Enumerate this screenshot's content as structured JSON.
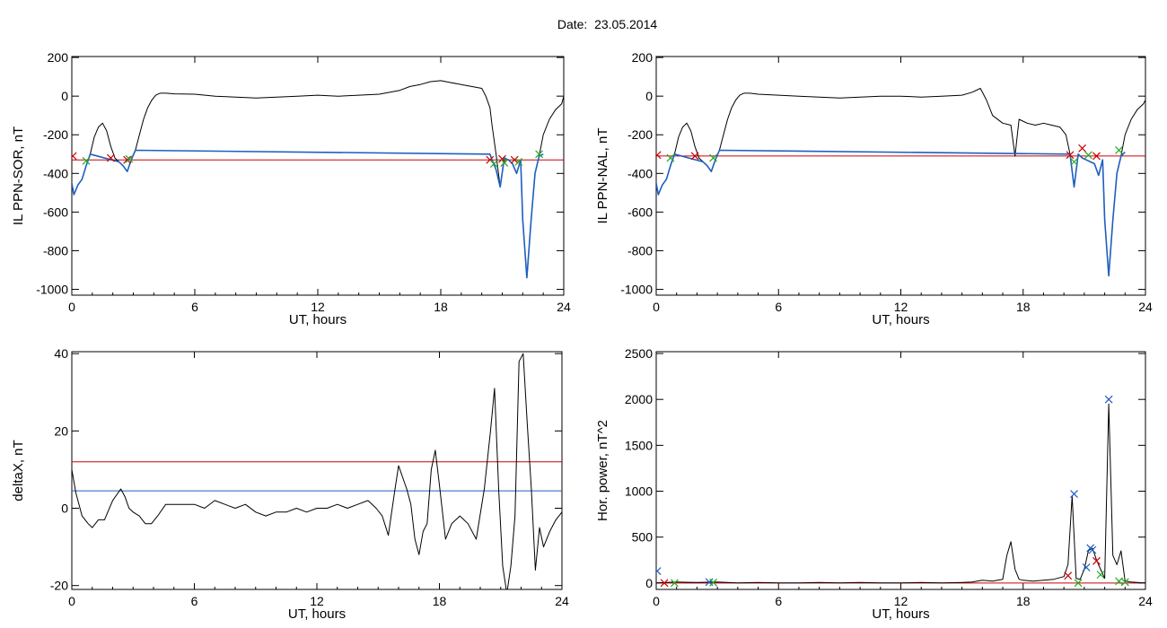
{
  "page_title": "Date:  23.05.2014",
  "colors": {
    "trace": "#000000",
    "threshold_red": "#cc0000",
    "threshold_blue": "#1f5fbf",
    "mark_green": "#22aa22",
    "mark_red": "#cc0000",
    "mark_blue": "#1f5fbf"
  },
  "chart_data": [
    {
      "type": "line",
      "xlabel": "UT, hours",
      "ylabel": "IL PPN-SOR, nT",
      "xlim": [
        0,
        24
      ],
      "ylim": [
        -1030,
        205
      ],
      "xticks": [
        0,
        6,
        12,
        18,
        24
      ],
      "yticks": [
        200,
        0,
        -200,
        -400,
        -600,
        -800,
        -1000
      ],
      "ytick_labels": [
        "200",
        "0",
        "-200",
        "-400",
        "-600",
        "-800",
        "-1000"
      ],
      "series": [
        {
          "style": "black",
          "x": [
            0,
            0.1,
            0.3,
            0.5,
            0.7,
            0.9,
            1.1,
            1.3,
            1.5,
            1.7,
            1.9,
            2.1,
            2.3,
            2.5,
            2.7,
            2.9,
            3.1,
            3.3,
            3.5,
            3.7,
            3.9,
            4.1,
            4.3,
            4.6,
            5.0,
            6,
            7,
            8,
            9,
            10,
            11,
            12,
            13,
            14,
            15,
            16,
            16.5,
            17,
            17.5,
            18,
            18.5,
            19,
            19.5,
            20,
            20.2,
            20.4,
            20.5,
            20.7,
            20.9,
            21.1,
            21.3,
            21.5,
            21.7,
            21.9,
            22.0,
            22.2,
            22.4,
            22.6,
            22.8,
            23.0,
            23.3,
            23.6,
            23.9,
            24
          ],
          "y": [
            -450,
            -510,
            -460,
            -430,
            -360,
            -300,
            -210,
            -160,
            -140,
            -180,
            -260,
            -320,
            -340,
            -360,
            -390,
            -330,
            -280,
            -200,
            -120,
            -60,
            -20,
            5,
            15,
            15,
            12,
            10,
            0,
            -5,
            -10,
            -5,
            0,
            5,
            0,
            5,
            10,
            30,
            50,
            60,
            75,
            80,
            70,
            60,
            50,
            40,
            0,
            -60,
            -150,
            -300,
            -470,
            -320,
            -330,
            -350,
            -400,
            -330,
            -640,
            -940,
            -650,
            -400,
            -310,
            -200,
            -120,
            -70,
            -40,
            0
          ]
        },
        {
          "style": "blue",
          "x": [
            0,
            0.1,
            0.3,
            0.5,
            0.7,
            0.9,
            2.3,
            2.5,
            2.7,
            2.9,
            3.1,
            20.4,
            20.5,
            20.7,
            20.9,
            21.1,
            21.3,
            21.5,
            21.7,
            21.9,
            22.0,
            22.2,
            22.4,
            22.6,
            22.8,
            23.0
          ],
          "y": [
            -450,
            -510,
            -460,
            -430,
            -360,
            -300,
            -340,
            -360,
            -390,
            -330,
            -280,
            -300,
            -330,
            -380,
            -470,
            -320,
            -330,
            -350,
            -400,
            -330,
            -640,
            -940,
            -650,
            -400,
            -310,
            -300
          ]
        }
      ],
      "hlines": [
        {
          "y": -330,
          "color": "red"
        }
      ],
      "markers": [
        {
          "x": 0.05,
          "y": -310,
          "color": "red"
        },
        {
          "x": 0.7,
          "y": -335,
          "color": "green"
        },
        {
          "x": 1.9,
          "y": -320,
          "color": "red"
        },
        {
          "x": 2.7,
          "y": -330,
          "color": "red"
        },
        {
          "x": 2.8,
          "y": -325,
          "color": "green"
        },
        {
          "x": 20.4,
          "y": -330,
          "color": "red"
        },
        {
          "x": 20.6,
          "y": -350,
          "color": "green"
        },
        {
          "x": 21.0,
          "y": -325,
          "color": "red"
        },
        {
          "x": 21.1,
          "y": -345,
          "color": "green"
        },
        {
          "x": 21.6,
          "y": -330,
          "color": "red"
        },
        {
          "x": 21.8,
          "y": -340,
          "color": "green"
        },
        {
          "x": 22.8,
          "y": -300,
          "color": "green"
        }
      ]
    },
    {
      "type": "line",
      "xlabel": "UT, hours",
      "ylabel": "IL PPN-NAL, nT",
      "xlim": [
        0,
        24
      ],
      "ylim": [
        -1030,
        205
      ],
      "xticks": [
        0,
        6,
        12,
        18,
        24
      ],
      "yticks": [
        200,
        0,
        -200,
        -400,
        -600,
        -800,
        -1000
      ],
      "ytick_labels": [
        "200",
        "0",
        "-200",
        "-400",
        "-600",
        "-800",
        "-1000"
      ],
      "series": [
        {
          "style": "black",
          "x": [
            0,
            0.1,
            0.3,
            0.5,
            0.7,
            0.9,
            1.1,
            1.3,
            1.5,
            1.7,
            1.9,
            2.1,
            2.3,
            2.5,
            2.7,
            2.9,
            3.1,
            3.3,
            3.5,
            3.7,
            3.9,
            4.1,
            4.3,
            4.6,
            5.0,
            6,
            7,
            8,
            9,
            10,
            11,
            12,
            13,
            14,
            15,
            15.5,
            15.9,
            16.2,
            16.5,
            17.0,
            17.4,
            17.6,
            17.8,
            18.2,
            18.6,
            19.0,
            19.4,
            19.8,
            20.1,
            20.3,
            20.5,
            20.7,
            20.9,
            21.1,
            21.3,
            21.5,
            21.7,
            21.9,
            22.0,
            22.2,
            22.4,
            22.6,
            22.8,
            23.0,
            23.3,
            23.6,
            23.9,
            24
          ],
          "y": [
            -450,
            -510,
            -460,
            -430,
            -360,
            -300,
            -210,
            -160,
            -140,
            -180,
            -260,
            -320,
            -340,
            -360,
            -390,
            -330,
            -280,
            -200,
            -120,
            -60,
            -20,
            5,
            15,
            15,
            10,
            5,
            0,
            -5,
            -10,
            -5,
            0,
            0,
            -5,
            0,
            5,
            20,
            40,
            -20,
            -100,
            -140,
            -150,
            -310,
            -120,
            -140,
            -150,
            -140,
            -150,
            -160,
            -200,
            -300,
            -470,
            -300,
            -320,
            -330,
            -340,
            -350,
            -410,
            -330,
            -640,
            -930,
            -640,
            -400,
            -310,
            -200,
            -120,
            -70,
            -40,
            -20
          ]
        },
        {
          "style": "blue",
          "x": [
            0,
            0.1,
            0.3,
            0.5,
            0.7,
            0.9,
            2.3,
            2.5,
            2.7,
            2.9,
            3.1,
            20.3,
            20.5,
            20.7,
            20.9,
            21.1,
            21.3,
            21.5,
            21.7,
            21.9,
            22.0,
            22.2,
            22.4,
            22.6,
            22.8,
            23.0
          ],
          "y": [
            -450,
            -510,
            -460,
            -430,
            -360,
            -300,
            -340,
            -360,
            -390,
            -330,
            -280,
            -300,
            -470,
            -300,
            -320,
            -330,
            -340,
            -350,
            -410,
            -330,
            -640,
            -930,
            -640,
            -400,
            -310,
            -290
          ]
        }
      ],
      "hlines": [
        {
          "y": -310,
          "color": "red"
        }
      ],
      "markers": [
        {
          "x": 0.05,
          "y": -305,
          "color": "red"
        },
        {
          "x": 0.7,
          "y": -320,
          "color": "green"
        },
        {
          "x": 1.9,
          "y": -310,
          "color": "red"
        },
        {
          "x": 2.8,
          "y": -320,
          "color": "green"
        },
        {
          "x": 20.3,
          "y": -305,
          "color": "red"
        },
        {
          "x": 20.5,
          "y": -340,
          "color": "green"
        },
        {
          "x": 20.9,
          "y": -270,
          "color": "red"
        },
        {
          "x": 21.2,
          "y": -305,
          "color": "green"
        },
        {
          "x": 21.6,
          "y": -310,
          "color": "red"
        },
        {
          "x": 22.7,
          "y": -280,
          "color": "green"
        }
      ]
    },
    {
      "type": "line",
      "xlabel": "UT, hours",
      "ylabel": "deltaX, nT",
      "xlim": [
        0,
        24
      ],
      "ylim": [
        -21,
        40.5
      ],
      "xticks": [
        0,
        6,
        12,
        18,
        24
      ],
      "yticks": [
        40,
        20,
        0,
        -20
      ],
      "ytick_labels": [
        "40",
        "20",
        "0",
        "-20"
      ],
      "series": [
        {
          "style": "black",
          "x": [
            0,
            0.2,
            0.5,
            0.8,
            1.0,
            1.3,
            1.6,
            2.0,
            2.4,
            2.6,
            2.8,
            3.0,
            3.3,
            3.6,
            3.9,
            4.2,
            4.6,
            5.0,
            5.5,
            6.0,
            6.5,
            7.0,
            7.5,
            8.0,
            8.5,
            9.0,
            9.5,
            10.0,
            10.5,
            11.0,
            11.5,
            12.0,
            12.5,
            13.0,
            13.5,
            14.0,
            14.5,
            14.9,
            15.2,
            15.5,
            15.8,
            16.0,
            16.2,
            16.4,
            16.6,
            16.8,
            17.0,
            17.2,
            17.4,
            17.6,
            17.8,
            18.0,
            18.3,
            18.6,
            19.0,
            19.4,
            19.8,
            20.2,
            20.5,
            20.7,
            20.9,
            21.1,
            21.3,
            21.5,
            21.7,
            21.9,
            22.1,
            22.3,
            22.5,
            22.7,
            22.9,
            23.1,
            23.4,
            23.7,
            24
          ],
          "y": [
            10,
            4,
            -2,
            -4,
            -5,
            -3,
            -3,
            2,
            5,
            3,
            0,
            -1,
            -2,
            -4,
            -4,
            -2,
            1,
            1,
            1,
            1,
            0,
            2,
            1,
            0,
            1,
            -1,
            -2,
            -1,
            -1,
            0,
            -1,
            0,
            0,
            1,
            0,
            1,
            2,
            0,
            -2,
            -7,
            4,
            11,
            8,
            5,
            1,
            -8,
            -12,
            -6,
            -4,
            10,
            15,
            6,
            -8,
            -4,
            -2,
            -4,
            -8,
            5,
            20,
            31,
            5,
            -15,
            -22,
            -15,
            -2,
            38,
            40,
            22,
            5,
            -16,
            -5,
            -10,
            -6,
            -3,
            -1
          ]
        }
      ],
      "hlines": [
        {
          "y": 12,
          "color": "red"
        },
        {
          "y": 4.5,
          "color": "blue"
        }
      ],
      "markers": []
    },
    {
      "type": "line",
      "xlabel": "UT, hours",
      "ylabel": "Hor. power, nT^2",
      "xlim": [
        0,
        24
      ],
      "ylim": [
        -70,
        2520
      ],
      "xticks": [
        0,
        6,
        12,
        18,
        24
      ],
      "yticks": [
        2500,
        2000,
        1500,
        1000,
        500,
        0
      ],
      "ytick_labels": [
        "2500",
        "2000",
        "1500",
        "1000",
        "500",
        "0"
      ],
      "series": [
        {
          "style": "black",
          "x": [
            0,
            0.5,
            1,
            2,
            3,
            4,
            5,
            6,
            7,
            8,
            9,
            10,
            11,
            12,
            13,
            14,
            15,
            15.5,
            16,
            16.5,
            17,
            17.2,
            17.4,
            17.6,
            17.8,
            18.0,
            18.5,
            19.0,
            19.5,
            20.0,
            20.2,
            20.4,
            20.6,
            20.8,
            21.0,
            21.2,
            21.4,
            21.6,
            21.8,
            22.0,
            22.2,
            22.4,
            22.6,
            22.8,
            23.0,
            23.3,
            23.6,
            24
          ],
          "y": [
            0,
            5,
            10,
            5,
            10,
            0,
            5,
            0,
            0,
            5,
            0,
            5,
            0,
            0,
            5,
            0,
            5,
            10,
            30,
            20,
            40,
            300,
            450,
            150,
            40,
            30,
            20,
            30,
            40,
            70,
            200,
            950,
            50,
            40,
            150,
            350,
            380,
            250,
            150,
            50,
            1950,
            300,
            200,
            350,
            20,
            10,
            5,
            0
          ]
        }
      ],
      "hlines": [
        {
          "y": 0,
          "color": "red"
        }
      ],
      "markers": [
        {
          "x": 0.05,
          "y": 130,
          "color": "blue"
        },
        {
          "x": 0.4,
          "y": 0,
          "color": "red"
        },
        {
          "x": 0.9,
          "y": 0,
          "color": "green"
        },
        {
          "x": 2.6,
          "y": 10,
          "color": "blue"
        },
        {
          "x": 2.8,
          "y": 5,
          "color": "green"
        },
        {
          "x": 20.2,
          "y": 80,
          "color": "red"
        },
        {
          "x": 20.5,
          "y": 970,
          "color": "blue"
        },
        {
          "x": 20.7,
          "y": 0,
          "color": "green"
        },
        {
          "x": 21.1,
          "y": 170,
          "color": "blue"
        },
        {
          "x": 21.3,
          "y": 380,
          "color": "blue"
        },
        {
          "x": 21.4,
          "y": 360,
          "color": "blue"
        },
        {
          "x": 21.6,
          "y": 240,
          "color": "red"
        },
        {
          "x": 21.8,
          "y": 90,
          "color": "green"
        },
        {
          "x": 22.2,
          "y": 2000,
          "color": "blue"
        },
        {
          "x": 22.7,
          "y": 20,
          "color": "green"
        },
        {
          "x": 23.0,
          "y": 10,
          "color": "green"
        }
      ]
    }
  ]
}
